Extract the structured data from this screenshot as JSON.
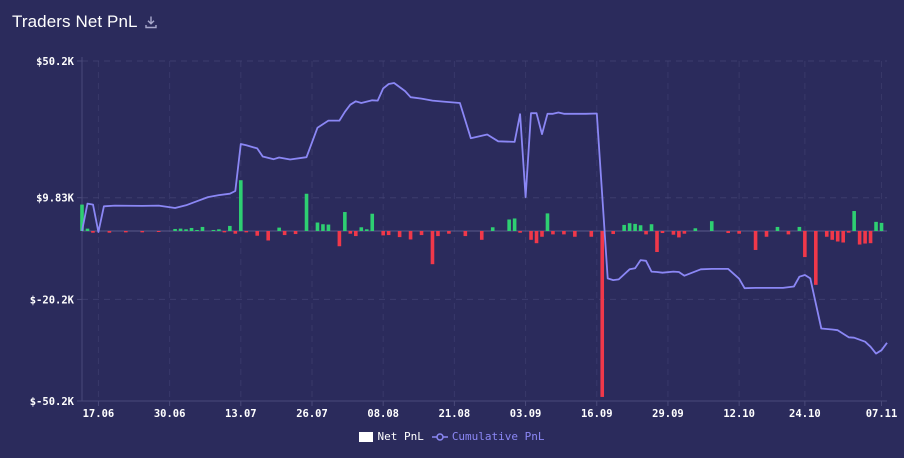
{
  "header": {
    "title": "Traders Net PnL",
    "download_icon": "download-icon"
  },
  "legend": {
    "net_label": "Net PnL",
    "cum_label": "Cumulative PnL",
    "net_color": "#ffffff",
    "cum_color": "#8b87f5"
  },
  "colors": {
    "positive": "#2ecf72",
    "negative": "#f0384a",
    "line": "#8b87f5",
    "background": "#2b2b5c",
    "grid": "#4a4a7a"
  },
  "chart_data": {
    "type": "bar",
    "title": "Traders Net PnL",
    "x_start": "2024-06-14",
    "x_end": "2024-11-08",
    "x_tick_labels": [
      "17.06",
      "30.06",
      "13.07",
      "26.07",
      "08.08",
      "21.08",
      "03.09",
      "16.09",
      "29.09",
      "12.10",
      "24.10",
      "07.11"
    ],
    "y_tick_labels": [
      "$50.2K",
      "$9.83K",
      "$-20.2K",
      "$-50.2K"
    ],
    "ylim": [
      -50200,
      50200
    ],
    "y_ticks": [
      50200,
      9830,
      -20200,
      -50200
    ],
    "grid": true,
    "legend_position": "bottom",
    "series": [
      {
        "name": "Net PnL",
        "type": "bar",
        "x": [
          "2024-06-14",
          "2024-06-15",
          "2024-06-16",
          "2024-06-19",
          "2024-06-22",
          "2024-06-25",
          "2024-06-28",
          "2024-07-01",
          "2024-07-02",
          "2024-07-03",
          "2024-07-04",
          "2024-07-05",
          "2024-07-06",
          "2024-07-08",
          "2024-07-09",
          "2024-07-10",
          "2024-07-11",
          "2024-07-12",
          "2024-07-13",
          "2024-07-14",
          "2024-07-16",
          "2024-07-18",
          "2024-07-20",
          "2024-07-21",
          "2024-07-23",
          "2024-07-25",
          "2024-07-27",
          "2024-07-28",
          "2024-07-29",
          "2024-07-31",
          "2024-08-01",
          "2024-08-02",
          "2024-08-03",
          "2024-08-04",
          "2024-08-05",
          "2024-08-06",
          "2024-08-08",
          "2024-08-09",
          "2024-08-11",
          "2024-08-13",
          "2024-08-15",
          "2024-08-17",
          "2024-08-18",
          "2024-08-20",
          "2024-08-23",
          "2024-08-26",
          "2024-08-28",
          "2024-08-31",
          "2024-09-01",
          "2024-09-02",
          "2024-09-04",
          "2024-09-05",
          "2024-09-06",
          "2024-09-07",
          "2024-09-08",
          "2024-09-10",
          "2024-09-12",
          "2024-09-15",
          "2024-09-17",
          "2024-09-19",
          "2024-09-21",
          "2024-09-22",
          "2024-09-23",
          "2024-09-24",
          "2024-09-25",
          "2024-09-26",
          "2024-09-27",
          "2024-09-28",
          "2024-09-30",
          "2024-10-01",
          "2024-10-02",
          "2024-10-04",
          "2024-10-07",
          "2024-10-10",
          "2024-10-12",
          "2024-10-15",
          "2024-10-17",
          "2024-10-19",
          "2024-10-21",
          "2024-10-23",
          "2024-10-24",
          "2024-10-26",
          "2024-10-28",
          "2024-10-29",
          "2024-10-30",
          "2024-10-31",
          "2024-11-01",
          "2024-11-02",
          "2024-11-03",
          "2024-11-04",
          "2024-11-05",
          "2024-11-06",
          "2024-11-07"
        ],
        "values": [
          7800,
          700,
          -500,
          -500,
          -400,
          -400,
          -300,
          600,
          700,
          500,
          900,
          300,
          1200,
          300,
          500,
          -400,
          1500,
          -800,
          15000,
          -400,
          -1400,
          -2800,
          1000,
          -1200,
          -900,
          11000,
          2500,
          2000,
          1900,
          -4500,
          5600,
          -800,
          -1500,
          1100,
          500,
          5100,
          -1300,
          -1200,
          -1800,
          -2500,
          -1200,
          -9800,
          -1500,
          -800,
          -1500,
          -2600,
          1100,
          3400,
          3700,
          -500,
          -2600,
          -3600,
          -1700,
          5200,
          -1000,
          -1000,
          -1700,
          -1700,
          -49000,
          -900,
          1800,
          2300,
          2100,
          1700,
          -1000,
          2000,
          -6200,
          -600,
          -1100,
          -1900,
          -800,
          800,
          2900,
          -600,
          -800,
          -5600,
          -1700,
          1200,
          -1000,
          1200,
          -7700,
          -15900,
          -1700,
          -2600,
          -3100,
          -3400,
          -500,
          5900,
          -4000,
          -3700,
          -3600,
          2700,
          2400
        ]
      },
      {
        "name": "Cumulative PnL",
        "type": "line",
        "x": [
          "2024-06-14",
          "2024-06-15",
          "2024-06-16",
          "2024-06-17",
          "2024-06-18",
          "2024-06-20",
          "2024-06-25",
          "2024-06-28",
          "2024-07-01",
          "2024-07-03",
          "2024-07-05",
          "2024-07-07",
          "2024-07-09",
          "2024-07-11",
          "2024-07-12",
          "2024-07-13",
          "2024-07-14",
          "2024-07-16",
          "2024-07-17",
          "2024-07-19",
          "2024-07-20",
          "2024-07-22",
          "2024-07-25",
          "2024-07-27",
          "2024-07-29",
          "2024-07-31",
          "2024-08-01",
          "2024-08-02",
          "2024-08-03",
          "2024-08-04",
          "2024-08-06",
          "2024-08-07",
          "2024-08-08",
          "2024-08-09",
          "2024-08-10",
          "2024-08-12",
          "2024-08-13",
          "2024-08-15",
          "2024-08-16",
          "2024-08-17",
          "2024-08-19",
          "2024-08-22",
          "2024-08-24",
          "2024-08-27",
          "2024-08-29",
          "2024-09-01",
          "2024-09-02",
          "2024-09-03",
          "2024-09-04",
          "2024-09-05",
          "2024-09-06",
          "2024-09-07",
          "2024-09-08",
          "2024-09-09",
          "2024-09-10",
          "2024-09-12",
          "2024-09-14",
          "2024-09-16",
          "2024-09-18",
          "2024-09-19",
          "2024-09-20",
          "2024-09-22",
          "2024-09-23",
          "2024-09-24",
          "2024-09-25",
          "2024-09-26",
          "2024-09-27",
          "2024-09-28",
          "2024-09-30",
          "2024-10-01",
          "2024-10-02",
          "2024-10-05",
          "2024-10-07",
          "2024-10-10",
          "2024-10-12",
          "2024-10-13",
          "2024-10-15",
          "2024-10-17",
          "2024-10-20",
          "2024-10-22",
          "2024-10-23",
          "2024-10-24",
          "2024-10-25",
          "2024-10-27",
          "2024-10-29",
          "2024-10-30",
          "2024-11-01",
          "2024-11-02",
          "2024-11-03",
          "2024-11-04",
          "2024-11-05",
          "2024-11-06",
          "2024-11-07",
          "2024-11-08"
        ],
        "values": [
          0,
          8100,
          7800,
          -300,
          7300,
          7500,
          7400,
          7500,
          6800,
          7600,
          8800,
          10000,
          10600,
          11000,
          11800,
          25700,
          25300,
          24400,
          22000,
          21200,
          21700,
          21100,
          21800,
          30500,
          32600,
          32600,
          35200,
          37300,
          38300,
          37800,
          38600,
          38500,
          42100,
          43400,
          43700,
          41300,
          39500,
          39100,
          38800,
          38500,
          38200,
          37800,
          27400,
          28500,
          26500,
          26300,
          34500,
          10000,
          34800,
          34800,
          28600,
          34600,
          34600,
          35000,
          34600,
          34600,
          34600,
          34700,
          -14000,
          -14500,
          -14300,
          -11300,
          -11000,
          -8600,
          -8800,
          -12000,
          -12100,
          -12300,
          -12000,
          -12100,
          -13200,
          -11300,
          -11200,
          -11200,
          -14100,
          -16900,
          -16800,
          -16800,
          -16800,
          -16400,
          -13500,
          -13000,
          -14000,
          -28800,
          -29100,
          -29300,
          -31400,
          -31500,
          -32100,
          -32700,
          -34200,
          -36200,
          -35200,
          -33000
        ]
      }
    ]
  }
}
